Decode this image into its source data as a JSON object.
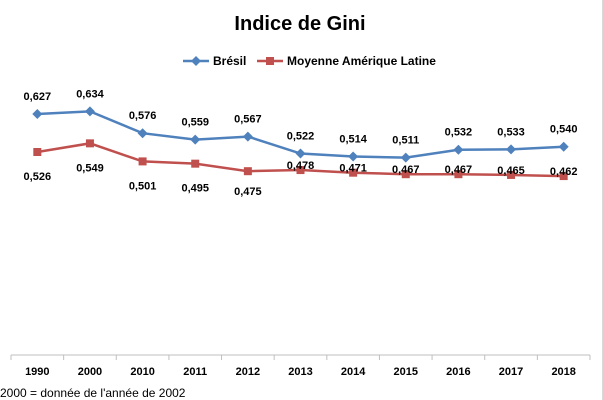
{
  "chart_data": {
    "type": "line",
    "title": "Indice de Gini",
    "categories": [
      "1990",
      "2000",
      "2010",
      "2011",
      "2012",
      "2013",
      "2014",
      "2015",
      "2016",
      "2017",
      "2018"
    ],
    "series": [
      {
        "name": "Brésil",
        "color": "#4f81bd",
        "marker": "diamond",
        "values": [
          0.627,
          0.634,
          0.576,
          0.559,
          0.567,
          0.522,
          0.514,
          0.511,
          0.532,
          0.533,
          0.54
        ],
        "labels": [
          "0,627",
          "0,634",
          "0,576",
          "0,559",
          "0,567",
          "0,522",
          "0,514",
          "0,511",
          "0,532",
          "0,533",
          "0,540"
        ]
      },
      {
        "name": "Moyenne Amérique Latine",
        "color": "#c0504d",
        "marker": "square",
        "values": [
          0.526,
          0.549,
          0.501,
          0.495,
          0.475,
          0.478,
          0.471,
          0.467,
          0.467,
          0.465,
          0.462
        ],
        "labels": [
          "0,526",
          "0,549",
          "0,501",
          "0,495",
          "0,475",
          "0,478",
          "0,471",
          "0,467",
          "0,467",
          "0,465",
          "0,462"
        ]
      }
    ],
    "legend_position": "top",
    "grid": false
  },
  "footnote": "2000 = donnée de l'année de 2002"
}
